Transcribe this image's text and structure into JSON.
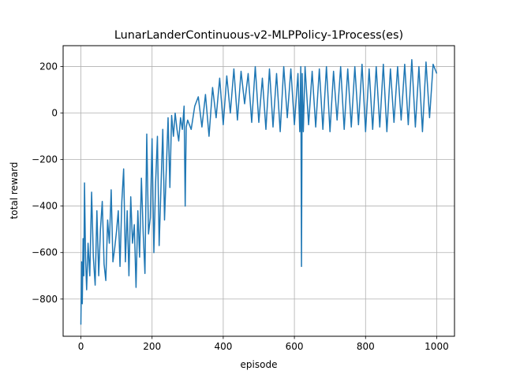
{
  "chart_data": {
    "type": "line",
    "title": "LunarLanderContinuous-v2-MLPPolicy-1Process(es)",
    "xlabel": "episode",
    "ylabel": "total reward",
    "xlim": [
      -50,
      1050
    ],
    "ylim": [
      -960,
      290
    ],
    "xticks": [
      0,
      200,
      400,
      600,
      800,
      1000
    ],
    "yticks": [
      -800,
      -600,
      -400,
      -200,
      0,
      200
    ],
    "xtick_labels": [
      "0",
      "200",
      "400",
      "600",
      "800",
      "1000"
    ],
    "ytick_labels": [
      "−800",
      "−600",
      "−400",
      "−200",
      "0",
      "200"
    ],
    "grid": true,
    "line_color": "#1f77b4",
    "series": [
      {
        "x": [
          0,
          2,
          4,
          6,
          8,
          10,
          13,
          16,
          20,
          25,
          30,
          35,
          40,
          45,
          50,
          55,
          60,
          65,
          70,
          75,
          80,
          85,
          90,
          95,
          100,
          105,
          110,
          115,
          120,
          125,
          130,
          135,
          140,
          145,
          150,
          155,
          160,
          165,
          170,
          175,
          180,
          185,
          190,
          195,
          200,
          205,
          210,
          215,
          220,
          225,
          230,
          235,
          240,
          245,
          250,
          255,
          260,
          265,
          270,
          275,
          280,
          285,
          290,
          293,
          296,
          300,
          310,
          320,
          330,
          340,
          350,
          360,
          370,
          380,
          390,
          400,
          410,
          420,
          430,
          440,
          450,
          460,
          470,
          480,
          490,
          500,
          510,
          520,
          530,
          540,
          550,
          560,
          570,
          580,
          590,
          600,
          610,
          615,
          618,
          620,
          622,
          625,
          630,
          640,
          650,
          660,
          670,
          680,
          690,
          700,
          710,
          720,
          730,
          740,
          750,
          760,
          770,
          780,
          790,
          800,
          810,
          820,
          830,
          840,
          850,
          860,
          870,
          880,
          890,
          900,
          910,
          920,
          930,
          940,
          950,
          960,
          970,
          980,
          990,
          1000
        ],
        "values": [
          -910,
          -640,
          -820,
          -540,
          -700,
          -300,
          -620,
          -760,
          -560,
          -700,
          -340,
          -620,
          -740,
          -420,
          -700,
          -500,
          -380,
          -650,
          -720,
          -460,
          -560,
          -330,
          -640,
          -580,
          -510,
          -420,
          -660,
          -380,
          -240,
          -640,
          -420,
          -700,
          -360,
          -560,
          -480,
          -750,
          -420,
          -620,
          -280,
          -520,
          -690,
          -90,
          -520,
          -450,
          -110,
          -600,
          -300,
          -100,
          -570,
          -320,
          -70,
          -460,
          -240,
          -20,
          -320,
          -10,
          -100,
          0,
          -70,
          -120,
          -20,
          -70,
          30,
          -400,
          -60,
          -30,
          -70,
          30,
          70,
          -60,
          80,
          -100,
          110,
          -20,
          150,
          -50,
          160,
          0,
          190,
          -30,
          180,
          40,
          170,
          -40,
          200,
          -40,
          150,
          -70,
          190,
          -60,
          170,
          -80,
          200,
          -20,
          190,
          -50,
          170,
          -80,
          200,
          -660,
          170,
          -80,
          200,
          -50,
          180,
          -60,
          190,
          -70,
          200,
          -80,
          180,
          -30,
          200,
          -70,
          190,
          -60,
          200,
          -50,
          210,
          -80,
          190,
          -70,
          200,
          -60,
          210,
          -80,
          190,
          -40,
          200,
          -30,
          210,
          -50,
          230,
          -60,
          200,
          -80,
          220,
          -20,
          210,
          170
        ]
      }
    ]
  }
}
